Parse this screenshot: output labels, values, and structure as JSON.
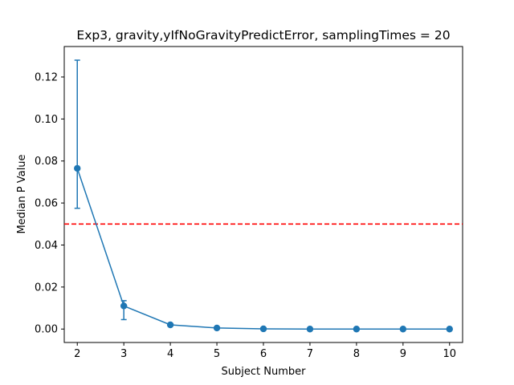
{
  "chart_data": {
    "type": "line",
    "title": "Exp3, gravity,yIfNoGravityPredictError, samplingTimes = 20",
    "xlabel": "Subject Number",
    "ylabel": "Median P Value",
    "xlim": [
      1.72,
      10.28
    ],
    "ylim": [
      -0.0064,
      0.1345
    ],
    "x_ticks": [
      2,
      3,
      4,
      5,
      6,
      7,
      8,
      9,
      10
    ],
    "y_ticks": [
      0.0,
      0.02,
      0.04,
      0.06,
      0.08,
      0.1,
      0.12
    ],
    "y_tick_labels": [
      "0.00",
      "0.02",
      "0.04",
      "0.06",
      "0.08",
      "0.10",
      "0.12"
    ],
    "grid": false,
    "series": [
      {
        "x": [
          2,
          3,
          4,
          5,
          6,
          7,
          8,
          9,
          10
        ],
        "values": [
          0.0765,
          0.011,
          0.002,
          0.0005,
          0.0001,
          0.0,
          0.0,
          0.0,
          0.0
        ],
        "err_low": [
          0.0575,
          0.0045,
          0.0015,
          0.0004,
          0.0001,
          0.0,
          0.0,
          0.0,
          0.0
        ],
        "err_high": [
          0.128,
          0.0135,
          0.0025,
          0.0006,
          0.0002,
          0.0,
          0.0,
          0.0,
          0.0
        ],
        "color": "#1f77b4",
        "marker": "circle"
      }
    ],
    "reference_line": {
      "y": 0.05,
      "color": "#ff0000",
      "style": "dashed"
    }
  }
}
